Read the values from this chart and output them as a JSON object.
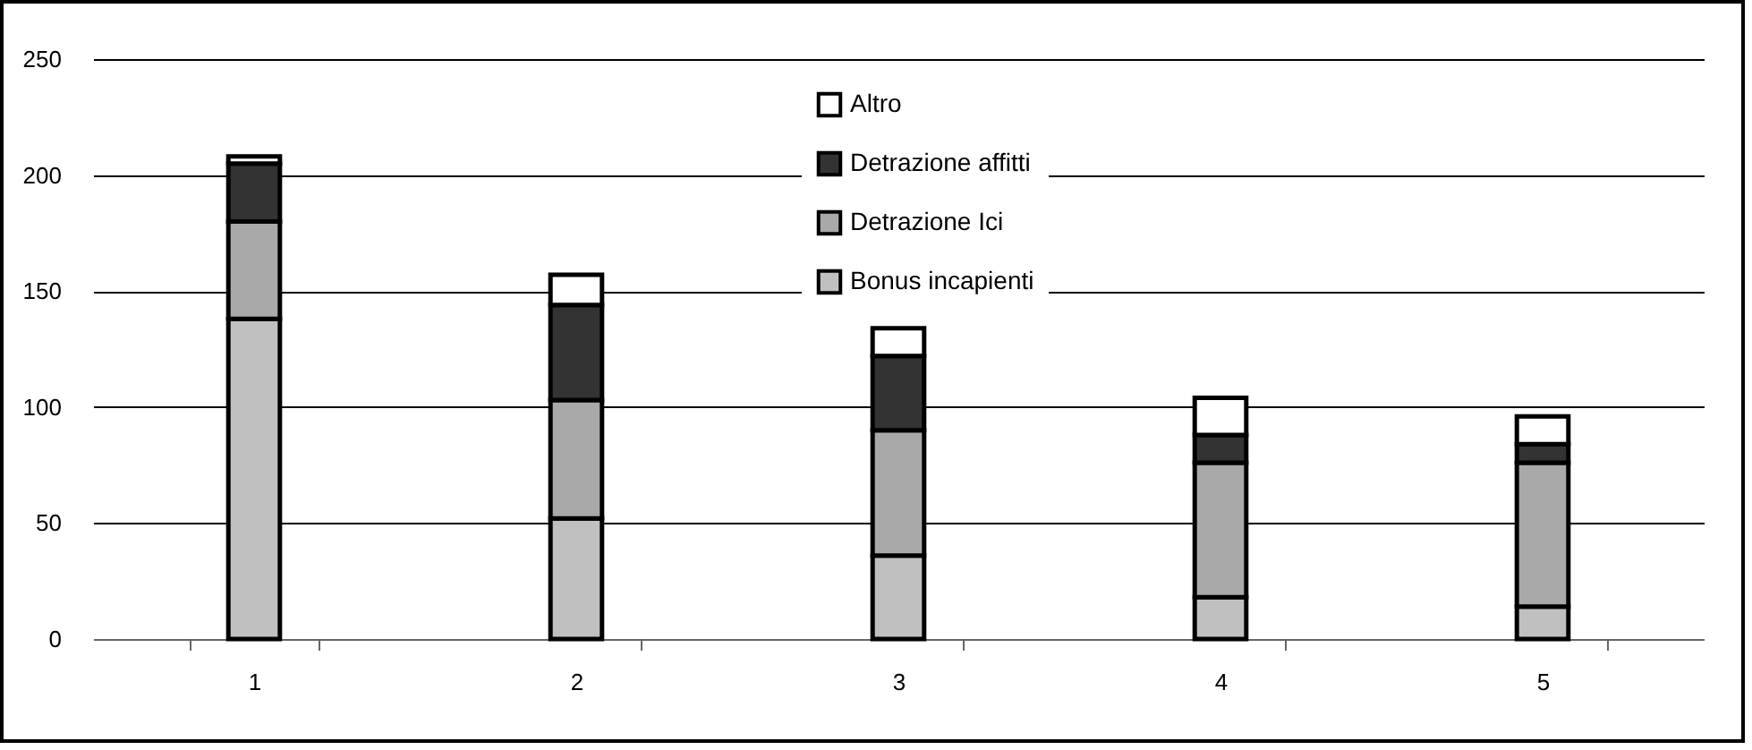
{
  "chart_data": {
    "type": "bar",
    "stacked": true,
    "categories": [
      "1",
      "2",
      "3",
      "4",
      "5"
    ],
    "series": [
      {
        "name": "Bonus incapienti",
        "color": "#c0c0c0",
        "values": [
          138,
          52,
          36,
          18,
          14
        ]
      },
      {
        "name": "Detrazione Ici",
        "color": "#a9a9a9",
        "values": [
          42,
          51,
          54,
          58,
          62
        ]
      },
      {
        "name": "Detrazione affitti",
        "color": "#333333",
        "values": [
          25,
          41,
          32,
          12,
          8
        ]
      },
      {
        "name": "Altro",
        "color": "#ffffff",
        "values": [
          3,
          13,
          12,
          16,
          12
        ]
      }
    ],
    "ylim": [
      0,
      250
    ],
    "yticks": [
      0,
      50,
      100,
      150,
      200,
      250
    ],
    "grid": "y",
    "legend": "top right"
  }
}
